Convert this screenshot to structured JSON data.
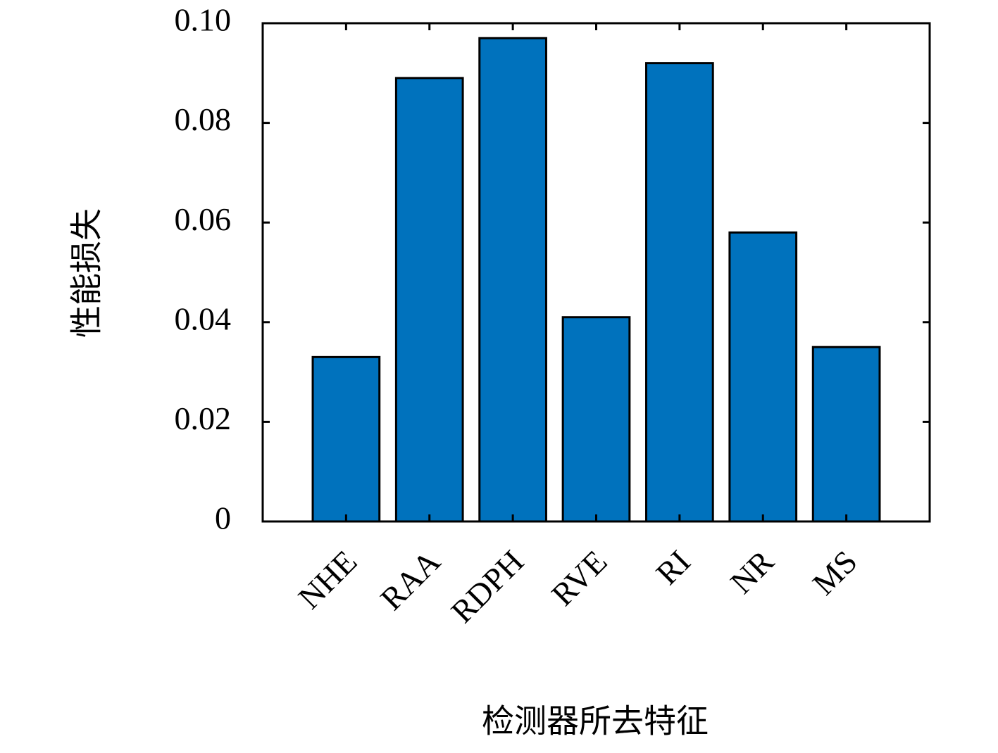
{
  "chart_data": {
    "type": "bar",
    "x_label": "检测器所去特征",
    "y_label": "性能损失",
    "categories": [
      "NHE",
      "RAA",
      "RDPH",
      "RVE",
      "RI",
      "NR",
      "MS"
    ],
    "values": [
      0.033,
      0.089,
      0.097,
      0.041,
      0.092,
      0.058,
      0.035
    ],
    "color": "#0072bd",
    "ylim": [
      0,
      0.1
    ],
    "yticks": [
      0,
      0.02,
      0.04,
      0.06,
      0.08,
      {
        "value": 0.1,
        "label": "0.10"
      }
    ]
  }
}
